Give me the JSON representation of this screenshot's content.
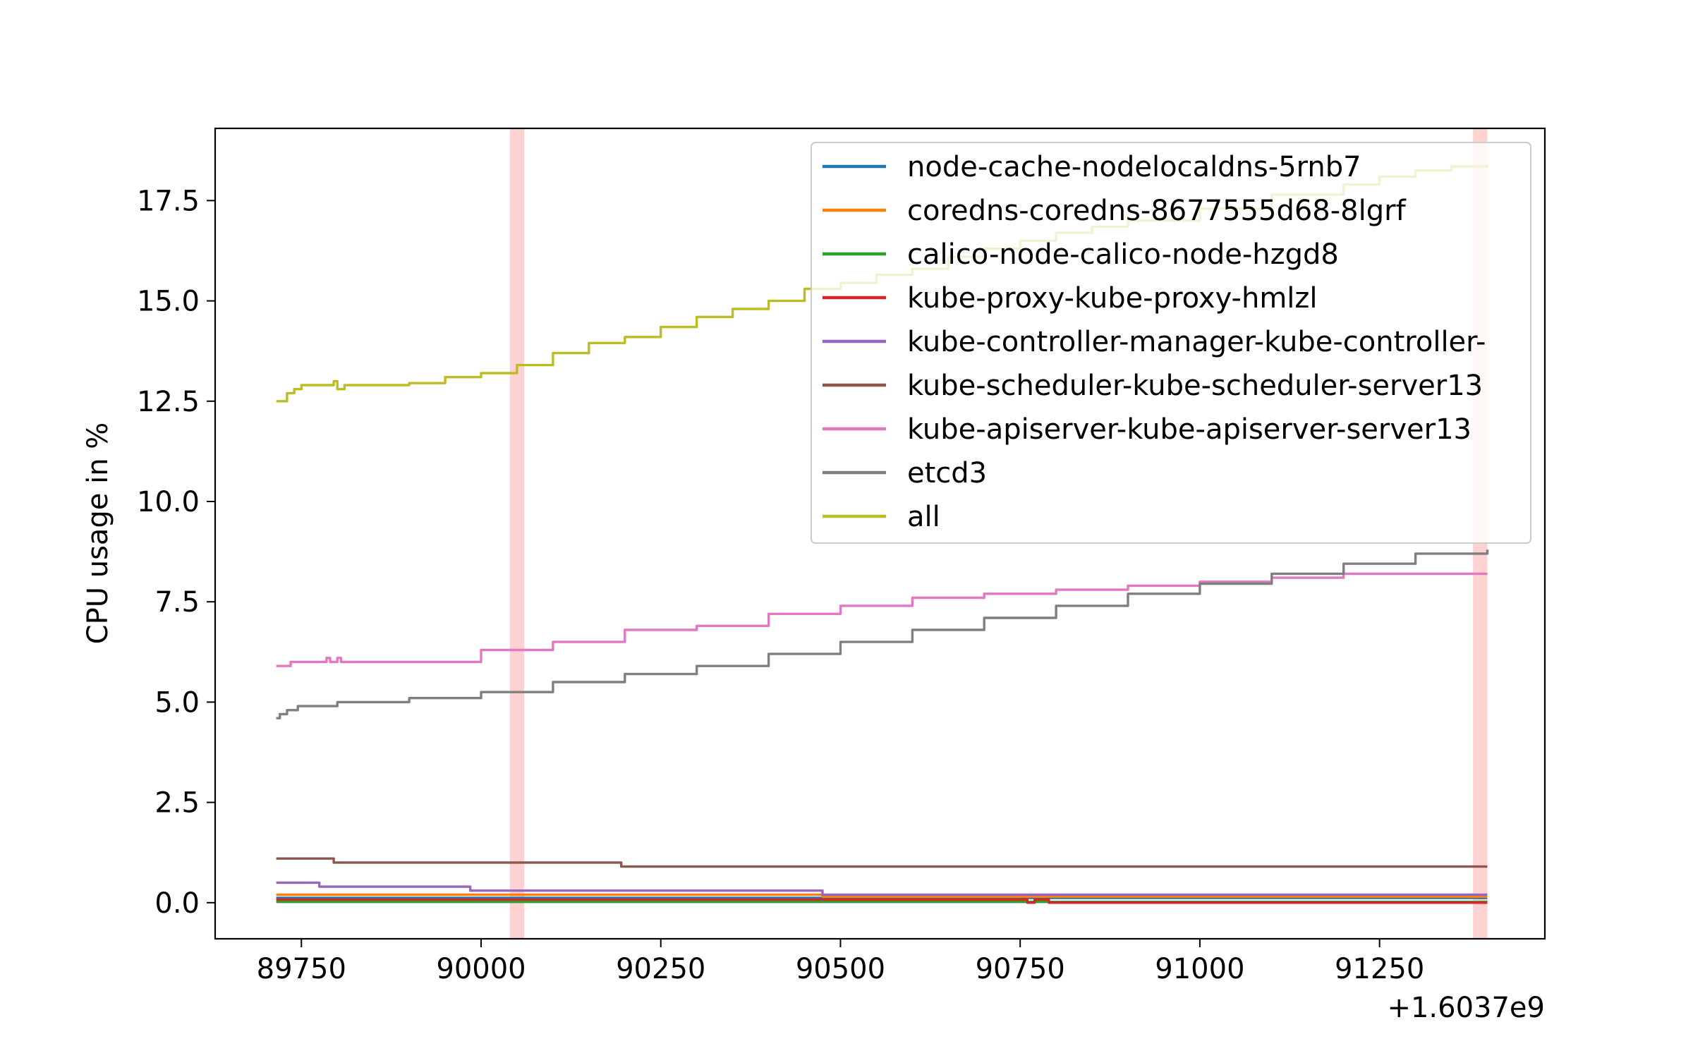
{
  "chart_data": {
    "type": "line",
    "title": "",
    "xlabel": "",
    "ylabel": "CPU usage in %",
    "x_offset_label": "+1.6037e9",
    "xlim": [
      89630,
      91480
    ],
    "ylim": [
      -0.9,
      19.3
    ],
    "xticks": [
      {
        "value": 89750,
        "label": "89750"
      },
      {
        "value": 90000,
        "label": "90000"
      },
      {
        "value": 90250,
        "label": "90250"
      },
      {
        "value": 90500,
        "label": "90500"
      },
      {
        "value": 90750,
        "label": "90750"
      },
      {
        "value": 91000,
        "label": "91000"
      },
      {
        "value": 91250,
        "label": "91250"
      }
    ],
    "yticks": [
      {
        "value": 0.0,
        "label": "0.0"
      },
      {
        "value": 2.5,
        "label": "2.5"
      },
      {
        "value": 5.0,
        "label": "5.0"
      },
      {
        "value": 7.5,
        "label": "7.5"
      },
      {
        "value": 10.0,
        "label": "10.0"
      },
      {
        "value": 12.5,
        "label": "12.5"
      },
      {
        "value": 15.0,
        "label": "15.0"
      },
      {
        "value": 17.5,
        "label": "17.5"
      }
    ],
    "highlight_spans": [
      {
        "x0": 90040,
        "x1": 90060,
        "color": "#ff6b6b"
      },
      {
        "x0": 91380,
        "x1": 91400,
        "color": "#ff6b6b"
      }
    ],
    "legend_position": "upper right",
    "grid": false,
    "series": [
      {
        "name": "node-cache-nodelocaldns-5rnb7",
        "color": "#1f77b4",
        "points": [
          [
            89715,
            0.12
          ],
          [
            91400,
            0.12
          ]
        ]
      },
      {
        "name": "coredns-coredns-8677555d68-8lgrf",
        "color": "#ff7f0e",
        "points": [
          [
            89715,
            0.2
          ],
          [
            90470,
            0.2
          ],
          [
            90475,
            0.15
          ],
          [
            91400,
            0.15
          ]
        ]
      },
      {
        "name": "calico-node-calico-node-hzgd8",
        "color": "#2ca02c",
        "points": [
          [
            89715,
            0.02
          ],
          [
            91400,
            0.02
          ]
        ]
      },
      {
        "name": "kube-proxy-kube-proxy-hmlzl",
        "color": "#d62728",
        "points": [
          [
            89715,
            0.08
          ],
          [
            90750,
            0.08
          ],
          [
            90760,
            0.0
          ],
          [
            90770,
            0.08
          ],
          [
            90790,
            0.0
          ],
          [
            91400,
            0.0
          ]
        ]
      },
      {
        "name": "kube-controller-manager-kube-controller-",
        "color": "#9467bd",
        "points": [
          [
            89715,
            0.5
          ],
          [
            89770,
            0.5
          ],
          [
            89775,
            0.4
          ],
          [
            89980,
            0.4
          ],
          [
            89985,
            0.3
          ],
          [
            90470,
            0.3
          ],
          [
            90475,
            0.2
          ],
          [
            91400,
            0.2
          ]
        ]
      },
      {
        "name": "kube-scheduler-kube-scheduler-server13",
        "color": "#8c564b",
        "points": [
          [
            89715,
            1.1
          ],
          [
            89790,
            1.1
          ],
          [
            89795,
            1.0
          ],
          [
            90190,
            1.0
          ],
          [
            90195,
            0.9
          ],
          [
            91400,
            0.9
          ]
        ]
      },
      {
        "name": "kube-apiserver-kube-apiserver-server13",
        "color": "#e377c2",
        "points": [
          [
            89715,
            5.9
          ],
          [
            89730,
            5.9
          ],
          [
            89735,
            6.0
          ],
          [
            89780,
            6.0
          ],
          [
            89785,
            6.1
          ],
          [
            89790,
            6.0
          ],
          [
            89800,
            6.1
          ],
          [
            89805,
            6.0
          ],
          [
            89900,
            6.0
          ],
          [
            90000,
            6.3
          ],
          [
            90100,
            6.5
          ],
          [
            90200,
            6.8
          ],
          [
            90300,
            6.9
          ],
          [
            90400,
            7.2
          ],
          [
            90500,
            7.4
          ],
          [
            90600,
            7.6
          ],
          [
            90700,
            7.7
          ],
          [
            90800,
            7.8
          ],
          [
            90900,
            7.9
          ],
          [
            91000,
            8.0
          ],
          [
            91100,
            8.1
          ],
          [
            91200,
            8.2
          ],
          [
            91400,
            8.2
          ]
        ]
      },
      {
        "name": "etcd3",
        "color": "#7f7f7f",
        "points": [
          [
            89715,
            4.6
          ],
          [
            89720,
            4.7
          ],
          [
            89730,
            4.8
          ],
          [
            89745,
            4.9
          ],
          [
            89800,
            5.0
          ],
          [
            89900,
            5.1
          ],
          [
            90000,
            5.25
          ],
          [
            90100,
            5.5
          ],
          [
            90200,
            5.7
          ],
          [
            90300,
            5.9
          ],
          [
            90400,
            6.2
          ],
          [
            90500,
            6.5
          ],
          [
            90600,
            6.8
          ],
          [
            90700,
            7.1
          ],
          [
            90800,
            7.4
          ],
          [
            90900,
            7.7
          ],
          [
            91000,
            7.95
          ],
          [
            91100,
            8.2
          ],
          [
            91200,
            8.45
          ],
          [
            91300,
            8.7
          ],
          [
            91400,
            8.8
          ]
        ]
      },
      {
        "name": "all",
        "color": "#bcbd22",
        "points": [
          [
            89715,
            12.5
          ],
          [
            89730,
            12.7
          ],
          [
            89740,
            12.8
          ],
          [
            89750,
            12.9
          ],
          [
            89790,
            12.9
          ],
          [
            89795,
            13.0
          ],
          [
            89800,
            12.8
          ],
          [
            89810,
            12.9
          ],
          [
            89850,
            12.9
          ],
          [
            89900,
            12.95
          ],
          [
            89950,
            13.1
          ],
          [
            90000,
            13.2
          ],
          [
            90050,
            13.4
          ],
          [
            90100,
            13.7
          ],
          [
            90150,
            13.95
          ],
          [
            90200,
            14.1
          ],
          [
            90250,
            14.35
          ],
          [
            90300,
            14.6
          ],
          [
            90350,
            14.8
          ],
          [
            90400,
            15.0
          ],
          [
            90450,
            15.3
          ],
          [
            90500,
            15.45
          ],
          [
            90550,
            15.65
          ],
          [
            90600,
            15.8
          ],
          [
            90650,
            16.1
          ],
          [
            90700,
            16.3
          ],
          [
            90750,
            16.5
          ],
          [
            90800,
            16.7
          ],
          [
            90850,
            16.85
          ],
          [
            90900,
            17.0
          ],
          [
            91000,
            17.3
          ],
          [
            91100,
            17.65
          ],
          [
            91200,
            17.9
          ],
          [
            91250,
            18.1
          ],
          [
            91300,
            18.25
          ],
          [
            91350,
            18.35
          ],
          [
            91400,
            18.4
          ]
        ]
      }
    ]
  }
}
